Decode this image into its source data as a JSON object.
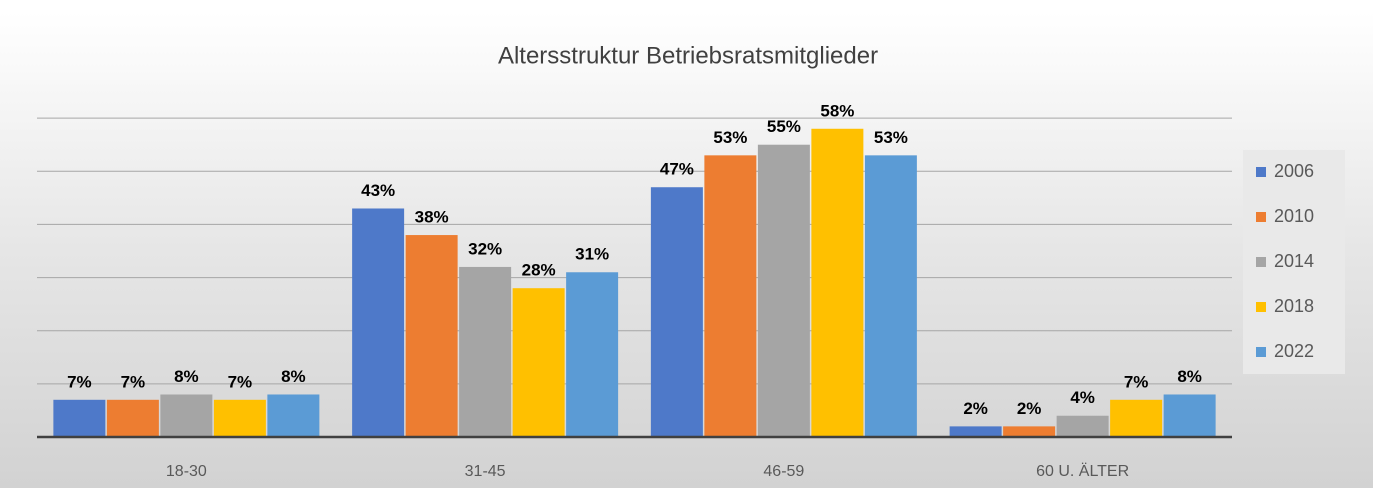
{
  "chart_data": {
    "type": "bar",
    "title": "Altersstruktur Betriebsratsmitglieder",
    "categories": [
      "18-30",
      "31-45",
      "46-59",
      "60 U. ÄLTER"
    ],
    "series": [
      {
        "name": "2006",
        "color": "#4e79c9",
        "values": [
          7,
          43,
          47,
          2
        ],
        "value_labels": [
          "7%",
          "43%",
          "47%",
          "2%"
        ]
      },
      {
        "name": "2010",
        "color": "#ed7d31",
        "values": [
          7,
          38,
          53,
          2
        ],
        "value_labels": [
          "7%",
          "38%",
          "53%",
          "2%"
        ]
      },
      {
        "name": "2014",
        "color": "#a5a5a5",
        "values": [
          8,
          32,
          55,
          4
        ],
        "value_labels": [
          "8%",
          "32%",
          "55%",
          "4%"
        ]
      },
      {
        "name": "2018",
        "color": "#ffc000",
        "values": [
          7,
          28,
          58,
          7
        ],
        "value_labels": [
          "7%",
          "28%",
          "58%",
          "7%"
        ]
      },
      {
        "name": "2022",
        "color": "#5b9bd5",
        "values": [
          8,
          31,
          53,
          8
        ],
        "value_labels": [
          "8%",
          "31%",
          "53%",
          "8%"
        ]
      }
    ],
    "ylim": [
      0,
      70
    ],
    "yticks": [
      0,
      10,
      20,
      30,
      40,
      50,
      60
    ],
    "grid": true,
    "legend": "right"
  }
}
